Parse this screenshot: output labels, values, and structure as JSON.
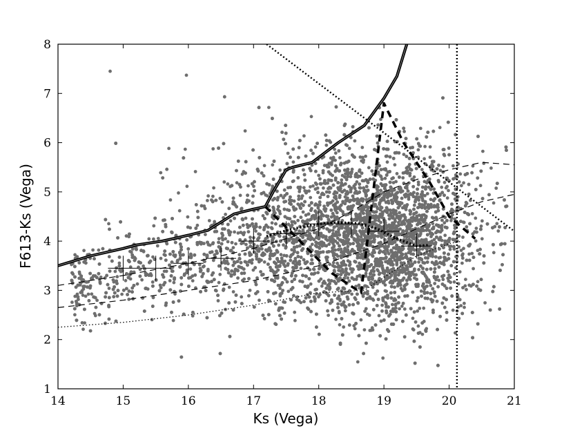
{
  "chart_data": {
    "type": "scatter",
    "title": "",
    "xlabel": "Ks (Vega)",
    "ylabel": "F613-Ks (Vega)",
    "xlim": [
      14,
      21
    ],
    "ylim": [
      1,
      8
    ],
    "x_ticks": [
      "14",
      "15",
      "16",
      "17",
      "18",
      "19",
      "20",
      "21"
    ],
    "y_ticks": [
      "1",
      "2",
      "3",
      "4",
      "5",
      "6",
      "7",
      "8"
    ],
    "grid": false,
    "legend": "none",
    "point_color": "#6e6e6e",
    "scatter_density": {
      "description_free": true,
      "core_center": [
        19.0,
        4.0
      ],
      "ks_range": [
        14.2,
        21.0
      ],
      "color_range": [
        1.0,
        7.5
      ]
    },
    "outliers": [
      {
        "x": 14.8,
        "y": 7.45
      },
      {
        "x": 15.97,
        "y": 7.37
      }
    ],
    "series": [
      {
        "style": "thick-solid",
        "x": [
          14.0,
          14.5,
          15.0,
          15.2,
          15.6,
          16.0,
          16.3,
          16.7,
          17.0,
          17.18,
          17.3,
          17.5,
          17.6,
          17.9,
          18.3,
          18.7,
          19.0,
          19.2,
          19.35
        ],
        "y": [
          3.5,
          3.7,
          3.85,
          3.92,
          4.0,
          4.12,
          4.22,
          4.55,
          4.65,
          4.7,
          5.0,
          5.45,
          5.5,
          5.6,
          6.0,
          6.35,
          6.9,
          7.35,
          8.0
        ]
      },
      {
        "style": "thick-dashed",
        "x": [
          17.18,
          17.6,
          18.2,
          18.65,
          19.0,
          19.3,
          19.7,
          20.0,
          20.4
        ],
        "y": [
          4.7,
          4.15,
          3.35,
          2.95,
          6.8,
          6.0,
          5.2,
          4.5,
          4.05
        ]
      },
      {
        "style": "thick-dotted",
        "x": [
          17.2,
          17.6,
          18.0,
          18.3,
          18.6,
          18.9,
          19.2,
          19.5,
          19.7
        ],
        "y": [
          4.1,
          4.25,
          4.35,
          4.38,
          4.36,
          4.25,
          4.05,
          3.9,
          3.92
        ]
      },
      {
        "style": "thin-dashed",
        "x": [
          14.0,
          15.0,
          16.0,
          17.0,
          18.0,
          18.5,
          19.0,
          19.5,
          20.0,
          20.5,
          21.0
        ],
        "y": [
          3.1,
          3.3,
          3.55,
          3.85,
          4.25,
          4.6,
          5.0,
          5.25,
          5.45,
          5.6,
          5.55
        ]
      },
      {
        "style": "thin-dashed",
        "x": [
          14.0,
          15.0,
          16.0,
          17.0,
          18.0,
          19.0,
          19.5,
          20.0,
          20.5,
          21.0
        ],
        "y": [
          2.65,
          2.8,
          3.0,
          3.2,
          3.5,
          3.95,
          4.25,
          4.55,
          4.8,
          4.95
        ]
      },
      {
        "style": "thin-dotted",
        "x": [
          14.0,
          15.0,
          16.0,
          17.0,
          18.0,
          18.7,
          19.5,
          20.0,
          20.2
        ],
        "y": [
          2.25,
          2.35,
          2.5,
          2.7,
          2.95,
          3.0,
          3.7,
          3.95,
          4.0
        ]
      },
      {
        "style": "medium-dotted",
        "x": [
          17.2,
          21.0
        ],
        "y": [
          8.0,
          4.2
        ]
      }
    ],
    "vertical_lines": [
      {
        "x": 20.12,
        "style": "dotted"
      }
    ],
    "error_bars": [
      {
        "x": 15.0,
        "y": 3.45
      },
      {
        "x": 15.5,
        "y": 3.45
      },
      {
        "x": 16.0,
        "y": 3.55
      },
      {
        "x": 16.5,
        "y": 3.65
      },
      {
        "x": 17.0,
        "y": 4.0
      },
      {
        "x": 17.5,
        "y": 4.15
      },
      {
        "x": 18.0,
        "y": 4.35
      },
      {
        "x": 18.5,
        "y": 4.35
      },
      {
        "x": 19.0,
        "y": 4.2
      },
      {
        "x": 19.5,
        "y": 3.9
      }
    ]
  }
}
